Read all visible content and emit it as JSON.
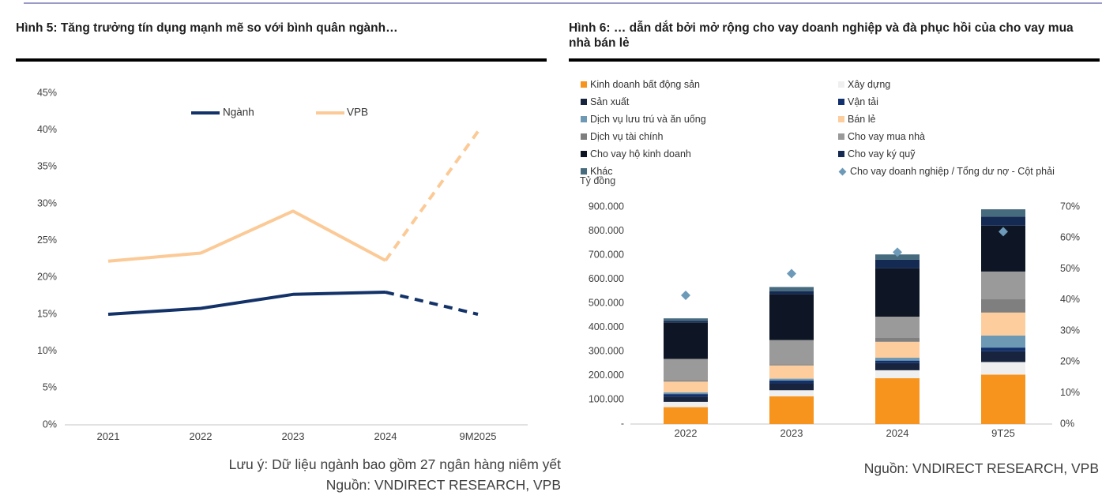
{
  "page": {
    "top_rule_color": "#9a9ac8"
  },
  "chart_data": [
    {
      "id": "fig5",
      "type": "line",
      "title": "Hình 5: Tăng trưởng tín dụng mạnh mẽ so với bình quân ngành…",
      "x_labels": [
        "2021",
        "2022",
        "2023",
        "2024",
        "9M2025"
      ],
      "y_axis": {
        "min": 0,
        "max": 45,
        "step": 5,
        "tick_labels": [
          "45%",
          "40%",
          "35%",
          "30%",
          "25%",
          "20%",
          "15%",
          "10%",
          "5%",
          "0%"
        ]
      },
      "grid": false,
      "legend_position": "top-center",
      "series": [
        {
          "name": "Ngành",
          "color": "#133268",
          "dashed_from_index": 3,
          "values": [
            15.0,
            15.8,
            17.7,
            18.0,
            15.0
          ]
        },
        {
          "name": "VPB",
          "color": "#fbca96",
          "dashed_from_index": 3,
          "values": [
            22.2,
            23.3,
            29.0,
            22.3,
            39.8
          ]
        }
      ],
      "note": "Lưu ý: Dữ liệu ngành bao gồm 27 ngân hàng niêm yết",
      "source": "Nguồn: VNDIRECT RESEARCH, VPB"
    },
    {
      "id": "fig6",
      "type": "bar",
      "subtype": "stacked-bar-with-right-axis-scatter",
      "title": "Hình 6: … dẫn dắt bởi mở rộng cho vay doanh nghiệp và đà phục hồi của cho vay mua nhà bán lẻ",
      "unit_label": "Tỷ đồng",
      "categories": [
        "2022",
        "2023",
        "2024",
        "9T25"
      ],
      "series": [
        {
          "name": "Kinh doanh bất động sản",
          "color": "#f7941e",
          "values": [
            70000,
            115000,
            190000,
            205000
          ]
        },
        {
          "name": "Xây dựng",
          "color": "#efefef",
          "values": [
            22000,
            25000,
            33000,
            52000
          ]
        },
        {
          "name": "Sản xuất",
          "color": "#18243e",
          "values": [
            22000,
            30000,
            30000,
            45000
          ]
        },
        {
          "name": "Vận tải",
          "color": "#10306e",
          "values": [
            10000,
            10000,
            10000,
            15000
          ]
        },
        {
          "name": "Dịch vụ lưu trú và ăn uống",
          "color": "#6d99b5",
          "values": [
            7000,
            8000,
            12000,
            50000
          ]
        },
        {
          "name": "Bán lẻ",
          "color": "#fdcd9d",
          "values": [
            45000,
            55000,
            66000,
            95000
          ]
        },
        {
          "name": "Dịch vụ tài chính",
          "color": "#7f7f7f",
          "values": [
            4000,
            5000,
            17000,
            55000
          ]
        },
        {
          "name": "Cho vay mua nhà",
          "color": "#9a9a9a",
          "values": [
            90000,
            100000,
            87000,
            115000
          ]
        },
        {
          "name": "Cho vay hộ kinh doanh",
          "color": "#0e1626",
          "values": [
            150000,
            190000,
            200000,
            190000
          ]
        },
        {
          "name": "Cho vay ký quỹ",
          "color": "#152a52",
          "values": [
            8000,
            12000,
            36000,
            38000
          ]
        },
        {
          "name": "Khác",
          "color": "#466a7e",
          "values": [
            10000,
            18000,
            22000,
            30000
          ]
        }
      ],
      "scatter_series": {
        "name": "Cho vay doanh nghiệp / Tổng dư nợ - Cột phải",
        "color": "#6d9ab8",
        "marker": "diamond",
        "axis": "right",
        "values_percent": [
          41.5,
          48.5,
          55.4,
          62.0
        ]
      },
      "left_axis": {
        "min": 0,
        "max": 900000,
        "step": 100000,
        "tick_labels": [
          "900.000",
          "800.000",
          "700.000",
          "600.000",
          "500.000",
          "400.000",
          "300.000",
          "200.000",
          "100.000",
          "-"
        ]
      },
      "right_axis": {
        "min": 0,
        "max": 70,
        "step": 10,
        "tick_labels": [
          "70%",
          "60%",
          "50%",
          "40%",
          "30%",
          "20%",
          "10%",
          "0%"
        ]
      },
      "source": "Nguồn: VNDIRECT RESEARCH, VPB"
    }
  ]
}
